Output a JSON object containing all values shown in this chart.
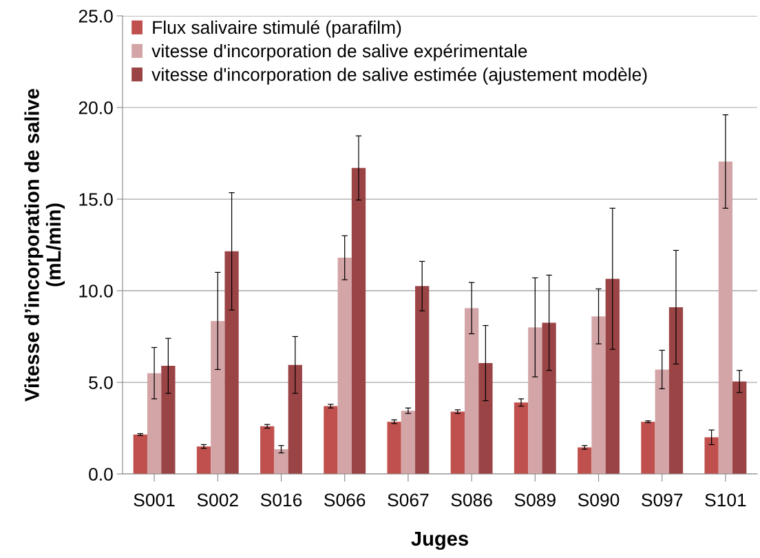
{
  "chart_data": {
    "type": "bar",
    "xlabel": "Juges",
    "ylabel": "Vitesse d’incorporation de salive\n(mL/min)",
    "categories": [
      "S001",
      "S002",
      "S016",
      "S066",
      "S067",
      "S086",
      "S089",
      "S090",
      "S097",
      "S101"
    ],
    "series": [
      {
        "name": "Flux salivaire stimulé (parafilm)",
        "color": "#c0504d",
        "values": [
          2.15,
          1.5,
          2.6,
          3.7,
          2.85,
          3.4,
          3.9,
          1.45,
          2.85,
          2.0
        ],
        "errors": [
          0.05,
          0.1,
          0.1,
          0.1,
          0.1,
          0.1,
          0.2,
          0.1,
          0.05,
          0.4
        ]
      },
      {
        "name": "vitesse d'incorporation de salive expérimentale",
        "color": "#d4a5a7",
        "values": [
          5.5,
          8.35,
          1.35,
          11.8,
          3.45,
          9.05,
          8.0,
          8.6,
          5.7,
          17.05
        ],
        "errors": [
          1.4,
          2.65,
          0.2,
          1.2,
          0.15,
          1.4,
          2.7,
          1.5,
          1.05,
          2.55
        ]
      },
      {
        "name": "vitesse d'incorporation de salive estimée (ajustement modèle)",
        "color": "#9b4446",
        "values": [
          5.9,
          12.15,
          5.95,
          16.7,
          10.25,
          6.05,
          8.25,
          10.65,
          9.1,
          5.05
        ],
        "errors": [
          1.5,
          3.2,
          1.55,
          1.75,
          1.35,
          2.05,
          2.6,
          3.85,
          3.1,
          0.6
        ]
      }
    ],
    "ylim": [
      0,
      25
    ],
    "yticks": [
      {
        "value": 0,
        "label": "0.0"
      },
      {
        "value": 5,
        "label": "5.0"
      },
      {
        "value": 10,
        "label": "10.0"
      },
      {
        "value": 15,
        "label": "15.0"
      },
      {
        "value": 20,
        "label": "20.0"
      },
      {
        "value": 25,
        "label": "25.0"
      }
    ],
    "grid": "y",
    "legend": "top left"
  }
}
